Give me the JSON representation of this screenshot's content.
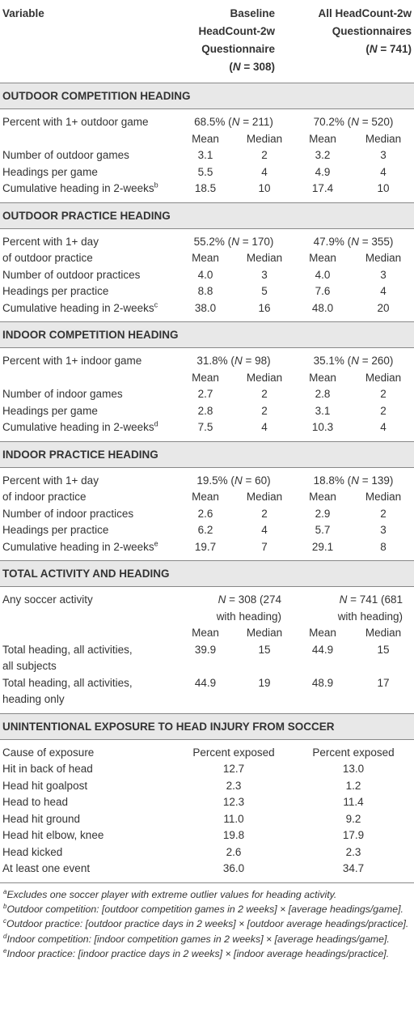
{
  "header": {
    "variable": "Variable",
    "baseline": "Baseline HeadCount-2w Questionnaire",
    "baseline_n": "(N = 308)",
    "all": "All HeadCount-2w Questionnaires",
    "all_n": "(N = 741)"
  },
  "sections": [
    {
      "title": "OUTDOOR COMPETITION HEADING",
      "rows": [
        {
          "label": "Percent with 1+ outdoor game",
          "cells": [
            "68.5% (N = 211)",
            "70.2% (N = 520)"
          ]
        },
        {
          "cells": [
            "Mean",
            "Median",
            "Mean",
            "Median"
          ]
        },
        {
          "label": "Number of outdoor games",
          "cells": [
            "3.1",
            "2",
            "3.2",
            "3"
          ]
        },
        {
          "label": "Headings per game",
          "cells": [
            "5.5",
            "4",
            "4.9",
            "4"
          ]
        },
        {
          "label": "Cumulative heading in 2-weeks",
          "note": "b",
          "cells": [
            "18.5",
            "10",
            "17.4",
            "10"
          ]
        }
      ]
    },
    {
      "title": "OUTDOOR PRACTICE HEADING",
      "rows": [
        {
          "label": "Percent with 1+ day",
          "cells": [
            "55.2% (N = 170)",
            "47.9% (N = 355)"
          ]
        },
        {
          "label": "of outdoor practice",
          "cells": [
            "Mean",
            "Median",
            "Mean",
            "Median"
          ]
        },
        {
          "label": "Number of outdoor practices",
          "cells": [
            "4.0",
            "3",
            "4.0",
            "3"
          ]
        },
        {
          "label": "Headings per practice",
          "cells": [
            "8.8",
            "5",
            "7.6",
            "4"
          ]
        },
        {
          "label": "Cumulative heading in 2-weeks",
          "note": "c",
          "cells": [
            "38.0",
            "16",
            "48.0",
            "20"
          ]
        }
      ]
    },
    {
      "title": "INDOOR COMPETITION HEADING",
      "rows": [
        {
          "label": "Percent with 1+ indoor game",
          "cells": [
            "31.8% (N = 98)",
            "35.1% (N = 260)"
          ]
        },
        {
          "cells": [
            "Mean",
            "Median",
            "Mean",
            "Median"
          ]
        },
        {
          "label": "Number of indoor games",
          "cells": [
            "2.7",
            "2",
            "2.8",
            "2"
          ]
        },
        {
          "label": "Headings per game",
          "cells": [
            "2.8",
            "2",
            "3.1",
            "2"
          ]
        },
        {
          "label": "Cumulative heading in 2-weeks",
          "note": "d",
          "cells": [
            "7.5",
            "4",
            "10.3",
            "4"
          ]
        }
      ]
    },
    {
      "title": "INDOOR PRACTICE HEADING",
      "rows": [
        {
          "label": "Percent with 1+ day",
          "cells": [
            "19.5% (N = 60)",
            "18.8% (N = 139)"
          ]
        },
        {
          "label": "of indoor practice",
          "cells": [
            "Mean",
            "Median",
            "Mean",
            "Median"
          ]
        },
        {
          "label": "Number of indoor practices",
          "cells": [
            "2.6",
            "2",
            "2.9",
            "2"
          ]
        },
        {
          "label": "Headings per practice",
          "cells": [
            "6.2",
            "4",
            "5.7",
            "3"
          ]
        },
        {
          "label": "Cumulative heading in 2-weeks",
          "note": "e",
          "cells": [
            "19.7",
            "7",
            "29.1",
            "8"
          ]
        }
      ]
    },
    {
      "title": "TOTAL ACTIVITY AND HEADING",
      "rows": [
        {
          "label": "Any soccer activity",
          "cells": [
            "N = 308 (274\nwith heading)",
            "N = 741 (681\nwith heading)"
          ]
        },
        {
          "cells": [
            "Mean",
            "Median",
            "Mean",
            "Median"
          ]
        },
        {
          "label": "Total heading, all activities,\nall subjects",
          "cells": [
            "39.9",
            "15",
            "44.9",
            "15"
          ]
        },
        {
          "label": "Total heading, all activities,\nheading only",
          "cells": [
            "44.9",
            "19",
            "48.9",
            "17"
          ]
        }
      ]
    },
    {
      "title": "UNINTENTIONAL EXPOSURE TO HEAD INJURY FROM SOCCER",
      "rows": [
        {
          "label": "Cause of exposure",
          "cells": [
            "Percent exposed",
            "Percent exposed"
          ]
        },
        {
          "label": "Hit in back of head",
          "cells": [
            "12.7",
            "13.0"
          ]
        },
        {
          "label": "Head hit goalpost",
          "cells": [
            "2.3",
            "1.2"
          ]
        },
        {
          "label": "Head to head",
          "cells": [
            "12.3",
            "11.4"
          ]
        },
        {
          "label": "Head hit ground",
          "cells": [
            "11.0",
            "9.2"
          ]
        },
        {
          "label": "Head hit elbow, knee",
          "cells": [
            "19.8",
            "17.9"
          ]
        },
        {
          "label": "Head kicked",
          "cells": [
            "2.6",
            "2.3"
          ]
        },
        {
          "label": "At least one event",
          "cells": [
            "36.0",
            "34.7"
          ]
        }
      ]
    }
  ],
  "footnotes": [
    {
      "mark": "a",
      "text": "Excludes one soccer player with extreme outlier values for heading activity."
    },
    {
      "mark": "b",
      "text": "Outdoor competition: [outdoor competition games in 2 weeks] × [average headings/game]."
    },
    {
      "mark": "c",
      "text": "Outdoor practice: [outdoor practice days in 2 weeks] × [outdoor average headings/practice]."
    },
    {
      "mark": "d",
      "text": "Indoor competition: [indoor competition games in 2 weeks] × [average headings/game]."
    },
    {
      "mark": "e",
      "text": "Indoor practice: [indoor practice days in 2 weeks] × [indoor average headings/practice]."
    }
  ]
}
